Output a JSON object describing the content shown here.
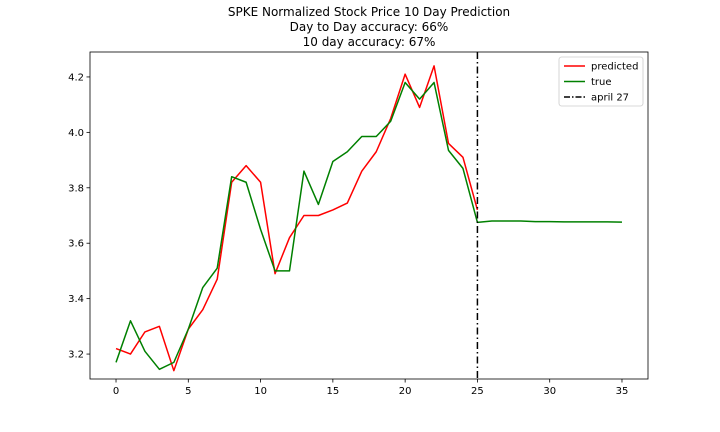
{
  "chart_data": {
    "type": "line",
    "title": [
      "SPKE Normalized Stock Price 10 Day Prediction",
      "Day to Day accuracy: 66%",
      "10 day accuracy: 67%"
    ],
    "xlim": [
      -1.8,
      36.8
    ],
    "ylim": [
      3.11,
      4.29
    ],
    "xticks": [
      0,
      5,
      10,
      15,
      20,
      25,
      30,
      35
    ],
    "xtick_labels": [
      "0",
      "5",
      "10",
      "15",
      "20",
      "25",
      "30",
      "35"
    ],
    "yticks": [
      3.2,
      3.4,
      3.6,
      3.8,
      4.0,
      4.2
    ],
    "ytick_labels": [
      "3.2",
      "3.4",
      "3.6",
      "3.8",
      "4.0",
      "4.2"
    ],
    "grid": false,
    "legend_position": "top-right",
    "series": [
      {
        "name": "predicted",
        "color": "#ff0000",
        "x": [
          0,
          1,
          2,
          3,
          4,
          5,
          6,
          7,
          8,
          9,
          10,
          11,
          12,
          13,
          14,
          15,
          16,
          17,
          18,
          19,
          20,
          21,
          22,
          23,
          24,
          25
        ],
        "y": [
          3.22,
          3.2,
          3.28,
          3.3,
          3.14,
          3.29,
          3.36,
          3.47,
          3.82,
          3.88,
          3.82,
          3.49,
          3.62,
          3.7,
          3.7,
          3.72,
          3.745,
          3.86,
          3.93,
          4.05,
          4.21,
          4.09,
          4.24,
          3.96,
          3.91,
          3.72
        ]
      },
      {
        "name": "true",
        "color": "#008000",
        "x": [
          0,
          1,
          2,
          3,
          4,
          5,
          6,
          7,
          8,
          9,
          10,
          11,
          12,
          13,
          14,
          15,
          16,
          17,
          18,
          19,
          20,
          21,
          22,
          23,
          24,
          25,
          26,
          27,
          28,
          29,
          30,
          31,
          32,
          33,
          34,
          35
        ],
        "y": [
          3.17,
          3.32,
          3.21,
          3.145,
          3.17,
          3.29,
          3.44,
          3.51,
          3.84,
          3.82,
          3.65,
          3.5,
          3.5,
          3.86,
          3.74,
          3.895,
          3.93,
          3.985,
          3.985,
          4.04,
          4.18,
          4.12,
          4.18,
          3.935,
          3.87,
          3.675,
          3.68,
          3.68,
          3.68,
          3.678,
          3.678,
          3.677,
          3.677,
          3.677,
          3.677,
          3.676
        ]
      }
    ],
    "vline": {
      "x": 25,
      "name": "april 27",
      "color": "#000000",
      "style": "dashdot"
    }
  }
}
